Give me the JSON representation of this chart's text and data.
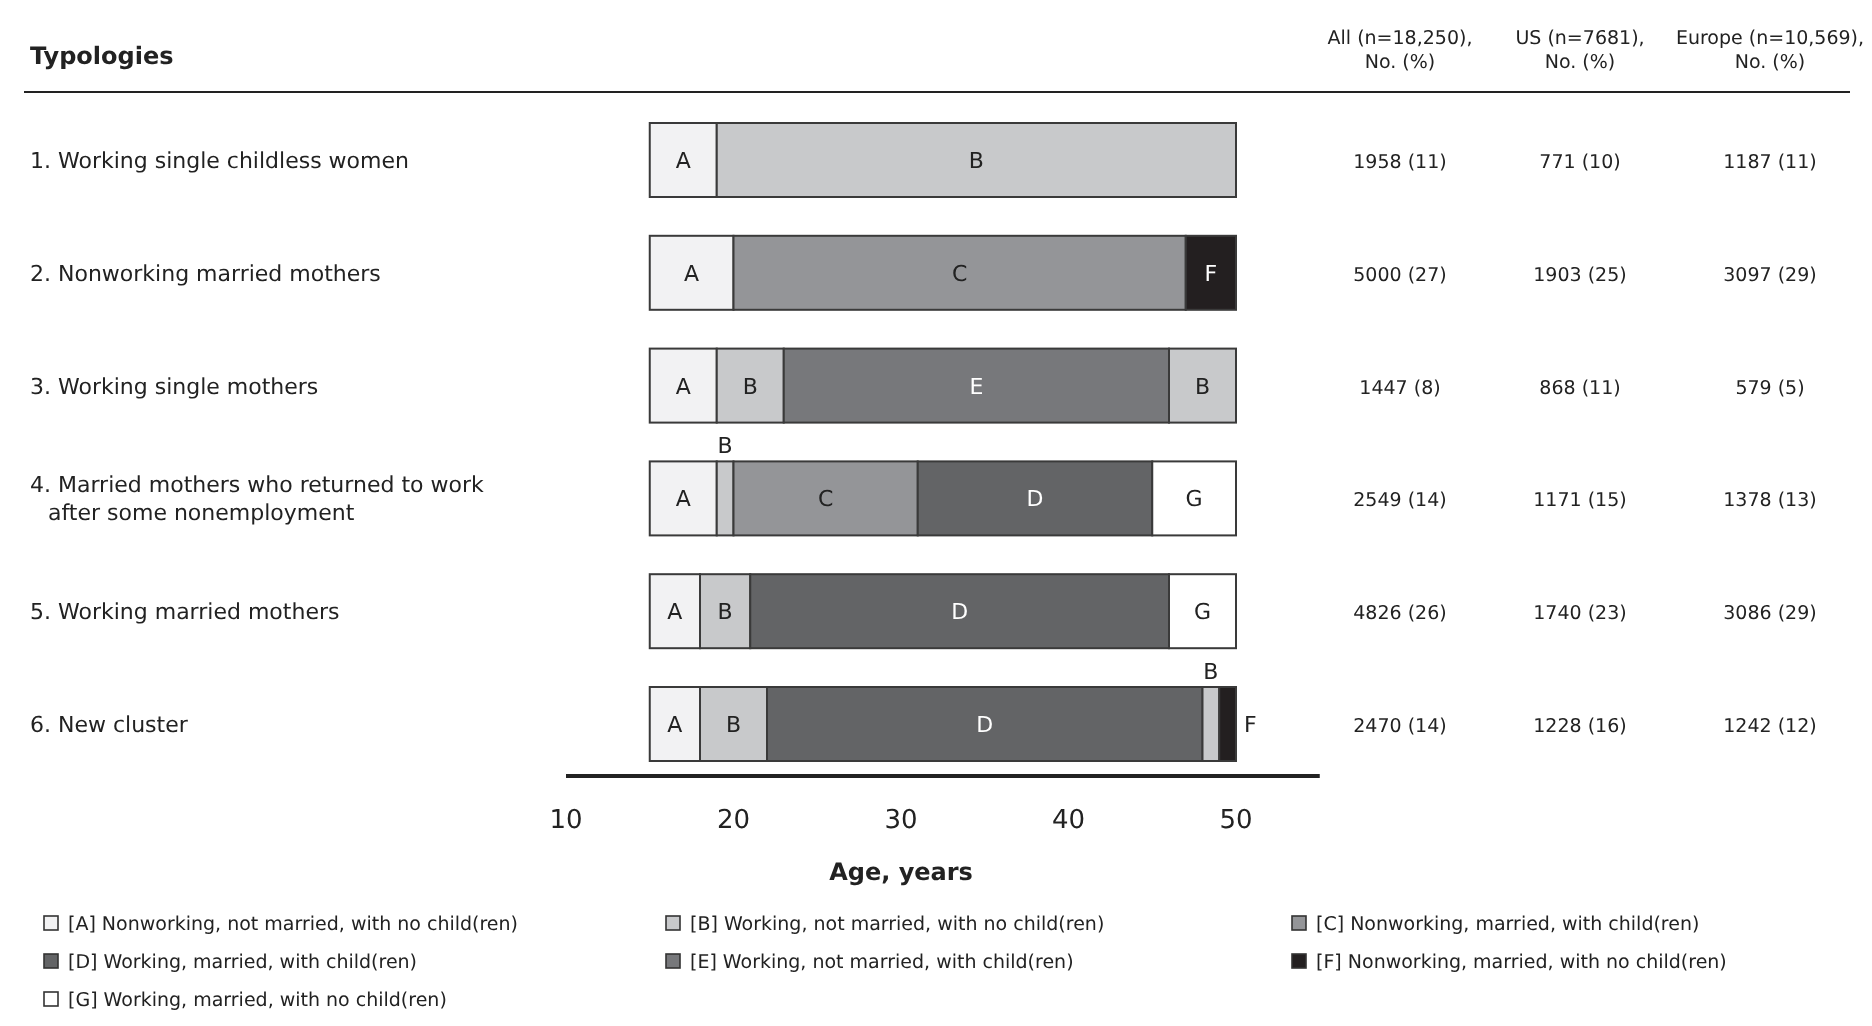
{
  "chart_data": {
    "type": "bar",
    "orientation": "horizontal",
    "ylabel": "Typologies",
    "xlabel": "Age, years",
    "categories": [
      "1. Working single childless women",
      "2. Nonworking married mothers",
      "3. Working single mothers",
      "4. Married mothers who returned to work after some nonemployment",
      "5. Working married mothers",
      "6. New cluster"
    ],
    "xlim": [
      10,
      55
    ],
    "xticks": [
      10,
      20,
      30,
      40,
      50
    ],
    "legend": "bottom",
    "grid": false,
    "series": [
      {
        "name": "[A] Nonworking, not married, with no child(ren)",
        "color": "#f2f2f3",
        "base": [
          15,
          15,
          15,
          15,
          15,
          15
        ],
        "values": [
          4,
          5,
          4,
          4,
          3,
          3
        ],
        "value_labels": [
          "A",
          "A",
          "A",
          "A",
          "A",
          "A"
        ]
      },
      {
        "name": "[B] Working, not married, with no child(ren)",
        "color": "#c8c9cb",
        "base": [
          19,
          null,
          19,
          19,
          18,
          18
        ],
        "values": [
          31,
          null,
          4,
          1,
          3,
          4
        ],
        "value_labels": [
          "B",
          null,
          "B",
          "B",
          "B",
          "B"
        ]
      },
      {
        "name": "[C] Nonworking, married, with child(ren)",
        "color": "#949598",
        "base": [
          null,
          20,
          null,
          20,
          null,
          null
        ],
        "values": [
          null,
          27,
          null,
          11,
          null,
          null
        ],
        "value_labels": [
          null,
          "C",
          null,
          "C",
          null,
          null
        ]
      },
      {
        "name": "[D] Working, married, with child(ren)",
        "color": "#636466",
        "base": [
          null,
          null,
          null,
          31,
          21,
          22
        ],
        "values": [
          null,
          null,
          null,
          14,
          25,
          26
        ],
        "value_labels": [
          null,
          null,
          null,
          "D",
          "D",
          "D"
        ]
      },
      {
        "name": "[E] Working, not married, with child(ren)",
        "color": "#77787b",
        "base": [
          null,
          null,
          23,
          null,
          null,
          null
        ],
        "values": [
          null,
          null,
          23,
          null,
          null,
          null
        ],
        "value_labels": [
          null,
          null,
          "E",
          null,
          null,
          null
        ]
      },
      {
        "color": "#c8c9cb",
        "base": [
          null,
          null,
          46,
          null,
          null,
          48
        ],
        "values": [
          null,
          null,
          4,
          null,
          null,
          1
        ],
        "value_labels": [
          null,
          null,
          "B",
          null,
          null,
          "B"
        ]
      },
      {
        "name": "[F] Nonworking, married, with no child(ren)",
        "color": "#231f20",
        "base": [
          null,
          47,
          null,
          null,
          null,
          49
        ],
        "values": [
          null,
          3,
          null,
          null,
          null,
          1
        ],
        "value_labels": [
          null,
          "F",
          null,
          null,
          null,
          "F"
        ]
      },
      {
        "name": "[G] Working, married, with no child(ren)",
        "color": "#ffffff",
        "base": [
          null,
          null,
          null,
          45,
          46,
          null
        ],
        "values": [
          null,
          null,
          null,
          5,
          4,
          null
        ],
        "value_labels": [
          null,
          null,
          null,
          "G",
          "G",
          null
        ]
      }
    ],
    "annotations": [
      "All (n=18,250), No. (%)",
      "US (n=7681), No. (%)",
      "Europe (n=10,569), No. (%)",
      "1958 (11)",
      "771 (10)",
      "1187 (11)",
      "5000 (27)",
      "1903 (25)",
      "3097 (29)",
      "1447 (8)",
      "868 (11)",
      "579 (5)",
      "2549 (14)",
      "1171 (15)",
      "1378 (13)",
      "4826 (26)",
      "1740 (23)",
      "3086 (29)",
      "2470 (14)",
      "1228 (16)",
      "1242 (12)"
    ]
  }
}
